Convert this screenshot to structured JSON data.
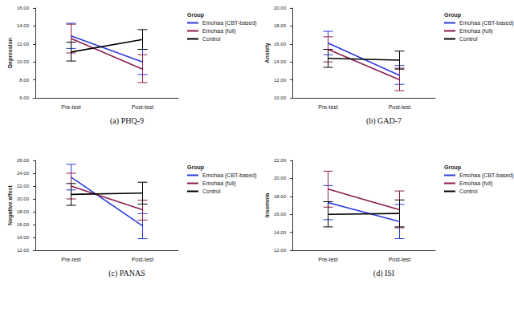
{
  "chart_data": [
    {
      "type": "line",
      "title": "(a) PHQ-9",
      "y_label": "Depression",
      "legend_title": "Group",
      "legend": "top-right",
      "categories": [
        "Pre-test",
        "Post-test"
      ],
      "ylim": [
        6,
        16
      ],
      "yticks": [
        {
          "value": 6,
          "label": "6.00"
        },
        {
          "value": 8,
          "label": "8.00"
        },
        {
          "value": 10,
          "label": "10.00"
        },
        {
          "value": 12,
          "label": "12.00"
        },
        {
          "value": 14,
          "label": "14.00"
        },
        {
          "value": 16,
          "label": "16.00"
        }
      ],
      "series": [
        {
          "name": "Emohaa (CBT-based)",
          "color": "#2b3bd9",
          "values": [
            12.9,
            10.0
          ],
          "error_low": [
            11.5,
            8.6
          ],
          "error_high": [
            14.3,
            11.4
          ]
        },
        {
          "name": "Emohaa (full)",
          "color": "#8c1d4f",
          "values": [
            12.6,
            9.2
          ],
          "error_low": [
            11.0,
            7.7
          ],
          "error_high": [
            14.2,
            10.8
          ]
        },
        {
          "name": "Control",
          "color": "#000000",
          "values": [
            11.1,
            12.5
          ],
          "error_low": [
            10.1,
            11.4
          ],
          "error_high": [
            12.2,
            13.6
          ]
        }
      ]
    },
    {
      "type": "line",
      "title": "(b) GAD-7",
      "y_label": "Anxiety",
      "legend_title": "Group",
      "legend": "top-right",
      "categories": [
        "Pre-test",
        "Post-test"
      ],
      "ylim": [
        10,
        20
      ],
      "yticks": [
        {
          "value": 10,
          "label": "10.00"
        },
        {
          "value": 12,
          "label": "12.00"
        },
        {
          "value": 14,
          "label": "14.00"
        },
        {
          "value": 16,
          "label": "16.00"
        },
        {
          "value": 18,
          "label": "18.00"
        },
        {
          "value": 20,
          "label": "20.00"
        }
      ],
      "series": [
        {
          "name": "Emohaa (CBT-based)",
          "color": "#2b3bd9",
          "values": [
            16.1,
            12.5
          ],
          "error_low": [
            14.8,
            11.5
          ],
          "error_high": [
            17.4,
            13.6
          ]
        },
        {
          "name": "Emohaa (full)",
          "color": "#8c1d4f",
          "values": [
            15.4,
            12.0
          ],
          "error_low": [
            14.0,
            10.8
          ],
          "error_high": [
            16.8,
            13.3
          ]
        },
        {
          "name": "Control",
          "color": "#000000",
          "values": [
            14.4,
            14.2
          ],
          "error_low": [
            13.4,
            13.2
          ],
          "error_high": [
            15.4,
            15.2
          ]
        }
      ]
    },
    {
      "type": "line",
      "title": "(c) PANAS",
      "y_label": "Negative affect",
      "legend_title": "Group",
      "legend": "top-right",
      "categories": [
        "Pre-test",
        "Post-test"
      ],
      "ylim": [
        12,
        26
      ],
      "yticks": [
        {
          "value": 12,
          "label": "12.00"
        },
        {
          "value": 14,
          "label": "14.00"
        },
        {
          "value": 16,
          "label": "16.00"
        },
        {
          "value": 18,
          "label": "18.00"
        },
        {
          "value": 20,
          "label": "20.00"
        },
        {
          "value": 22,
          "label": "22.00"
        },
        {
          "value": 24,
          "label": "24.00"
        },
        {
          "value": 26,
          "label": "26.00"
        }
      ],
      "series": [
        {
          "name": "Emohaa (CBT-based)",
          "color": "#2b3bd9",
          "values": [
            23.4,
            15.8
          ],
          "error_low": [
            21.4,
            13.8
          ],
          "error_high": [
            25.4,
            17.7
          ]
        },
        {
          "name": "Emohaa (full)",
          "color": "#8c1d4f",
          "values": [
            22.0,
            18.3
          ],
          "error_low": [
            20.0,
            16.7
          ],
          "error_high": [
            24.0,
            19.8
          ]
        },
        {
          "name": "Control",
          "color": "#000000",
          "values": [
            20.7,
            20.9
          ],
          "error_low": [
            19.0,
            19.2
          ],
          "error_high": [
            22.4,
            22.6
          ]
        }
      ]
    },
    {
      "type": "line",
      "title": "(d) ISI",
      "y_label": "Insomnia",
      "legend_title": "Group",
      "legend": "top-right",
      "categories": [
        "Pre-test",
        "Post-test"
      ],
      "ylim": [
        12,
        22
      ],
      "yticks": [
        {
          "value": 12,
          "label": "12.00"
        },
        {
          "value": 14,
          "label": "14.00"
        },
        {
          "value": 16,
          "label": "16.00"
        },
        {
          "value": 18,
          "label": "18.00"
        },
        {
          "value": 20,
          "label": "20.00"
        },
        {
          "value": 22,
          "label": "22.00"
        }
      ],
      "series": [
        {
          "name": "Emohaa (CBT-based)",
          "color": "#2b3bd9",
          "values": [
            17.3,
            15.2
          ],
          "error_low": [
            15.4,
            13.3
          ],
          "error_high": [
            19.2,
            17.1
          ]
        },
        {
          "name": "Emohaa (full)",
          "color": "#8c1d4f",
          "values": [
            18.8,
            16.5
          ],
          "error_low": [
            16.8,
            14.5
          ],
          "error_high": [
            20.8,
            18.6
          ]
        },
        {
          "name": "Control",
          "color": "#000000",
          "values": [
            16.0,
            16.1
          ],
          "error_low": [
            14.6,
            14.6
          ],
          "error_high": [
            17.4,
            17.6
          ]
        }
      ]
    }
  ]
}
